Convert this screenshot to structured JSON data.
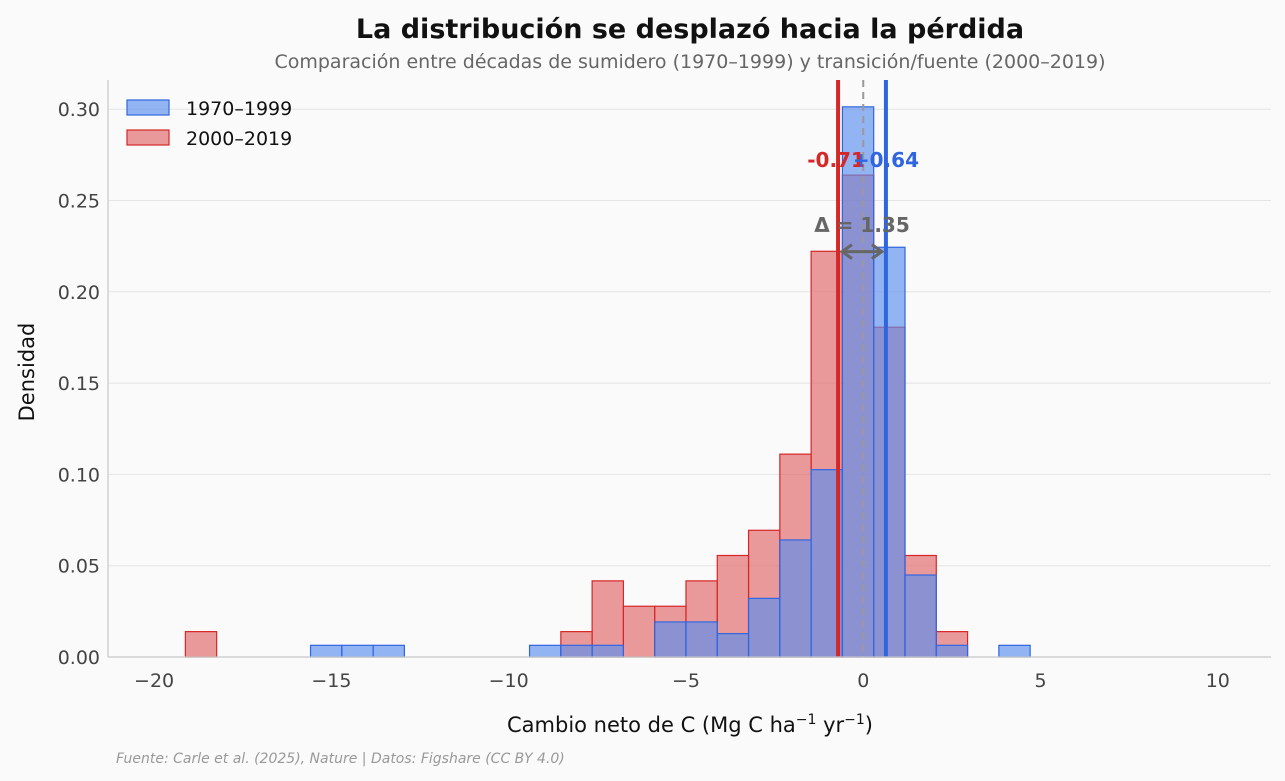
{
  "chart_data": {
    "type": "histogram",
    "title": "La distribución se desplazó hacia la pérdida",
    "subtitle": "Comparación entre décadas de sumidero (1970–1999) y transición/fuente (2000–2019)",
    "xlabel_parts": {
      "prefix": "Cambio neto de C (Mg C ha",
      "exp1": "−1",
      "mid": " yr",
      "exp2": "−1",
      "suffix": ")"
    },
    "ylabel": "Densidad",
    "xlim": [
      -21.3,
      11.5
    ],
    "ylim": [
      0,
      0.316
    ],
    "x_ticks": [
      -20,
      -15,
      -10,
      -5,
      0,
      5,
      10
    ],
    "x_tick_labels": [
      "−20",
      "−15",
      "−10",
      "−5",
      "0",
      "5",
      "10"
    ],
    "y_ticks": [
      0,
      0.05,
      0.1,
      0.15,
      0.2,
      0.25,
      0.3
    ],
    "y_tick_labels": [
      "0.00",
      "0.05",
      "0.10",
      "0.15",
      "0.20",
      "0.25",
      "0.30"
    ],
    "grid": true,
    "bin_start": -20,
    "bin_width": 0.8824,
    "series": [
      {
        "name": "2000–2019",
        "color": "#e06666",
        "edge_color": "#d62728",
        "values": [
          0,
          0.0139,
          0,
          0,
          0,
          0,
          0,
          0,
          0,
          0,
          0,
          0,
          0,
          0.0139,
          0.0417,
          0.0278,
          0.0278,
          0.0417,
          0.0556,
          0.0694,
          0.1111,
          0.2222,
          0.2639,
          0.1806,
          0.0556,
          0.0139,
          0,
          0,
          0,
          0,
          0,
          0,
          0,
          0
        ]
      },
      {
        "name": "1970–1999",
        "color": "#5b8ff0",
        "edge_color": "#2f66e0",
        "values": [
          0,
          0,
          0,
          0,
          0,
          0.0064,
          0.0064,
          0.0064,
          0,
          0,
          0,
          0,
          0.0064,
          0.0064,
          0.0064,
          0,
          0.0192,
          0.0192,
          0.0128,
          0.0321,
          0.0641,
          0.1026,
          0.3013,
          0.2244,
          0.0449,
          0.0064,
          0,
          0.0064,
          0,
          0,
          0,
          0,
          0,
          0
        ]
      }
    ],
    "mean_lines": [
      {
        "series": "2000–2019",
        "value": -0.71,
        "label": "-0.71",
        "color": "#d62728"
      },
      {
        "series": "1970–1999",
        "value": 0.64,
        "label": "+0.64",
        "color": "#2f66e0"
      }
    ],
    "zero_line": 0,
    "delta_annotation": {
      "label": "Δ = 1.35",
      "y": 0.222
    },
    "legend_position": "upper-left",
    "source": "Fuente: Carle et al. (2025), Nature | Datos: Figshare (CC BY 4.0)"
  }
}
